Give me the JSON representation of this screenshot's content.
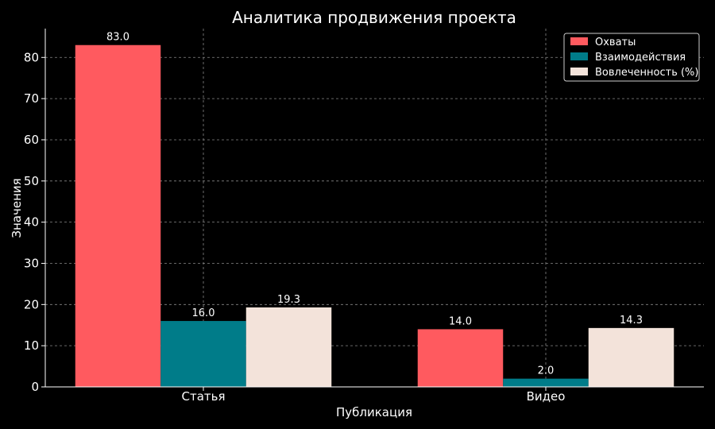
{
  "chart_data": {
    "type": "bar",
    "title": "Аналитика продвижения проекта",
    "xlabel": "Публикация",
    "ylabel": "Значения",
    "categories": [
      "Статья",
      "Видео"
    ],
    "series": [
      {
        "name": "Охваты",
        "values": [
          83.0,
          14.0
        ],
        "labels": [
          "83.0",
          "14.0"
        ],
        "color": "#FF5A5F"
      },
      {
        "name": "Взаимодействия",
        "values": [
          16.0,
          2.0
        ],
        "labels": [
          "16.0",
          "2.0"
        ],
        "color": "#007C89"
      },
      {
        "name": "Вовлеченность (%)",
        "values": [
          19.3,
          14.3
        ],
        "labels": [
          "19.3",
          "14.3"
        ],
        "color": "#F3E3DA"
      }
    ],
    "ylim": [
      0,
      87
    ],
    "yticks": [
      0,
      10,
      20,
      30,
      40,
      50,
      60,
      70,
      80
    ],
    "ytick_labels": [
      "0",
      "10",
      "20",
      "30",
      "40",
      "50",
      "60",
      "70",
      "80"
    ],
    "grid": true,
    "legend_position": "top-right",
    "background": "#000000",
    "grid_color": "#888888"
  }
}
